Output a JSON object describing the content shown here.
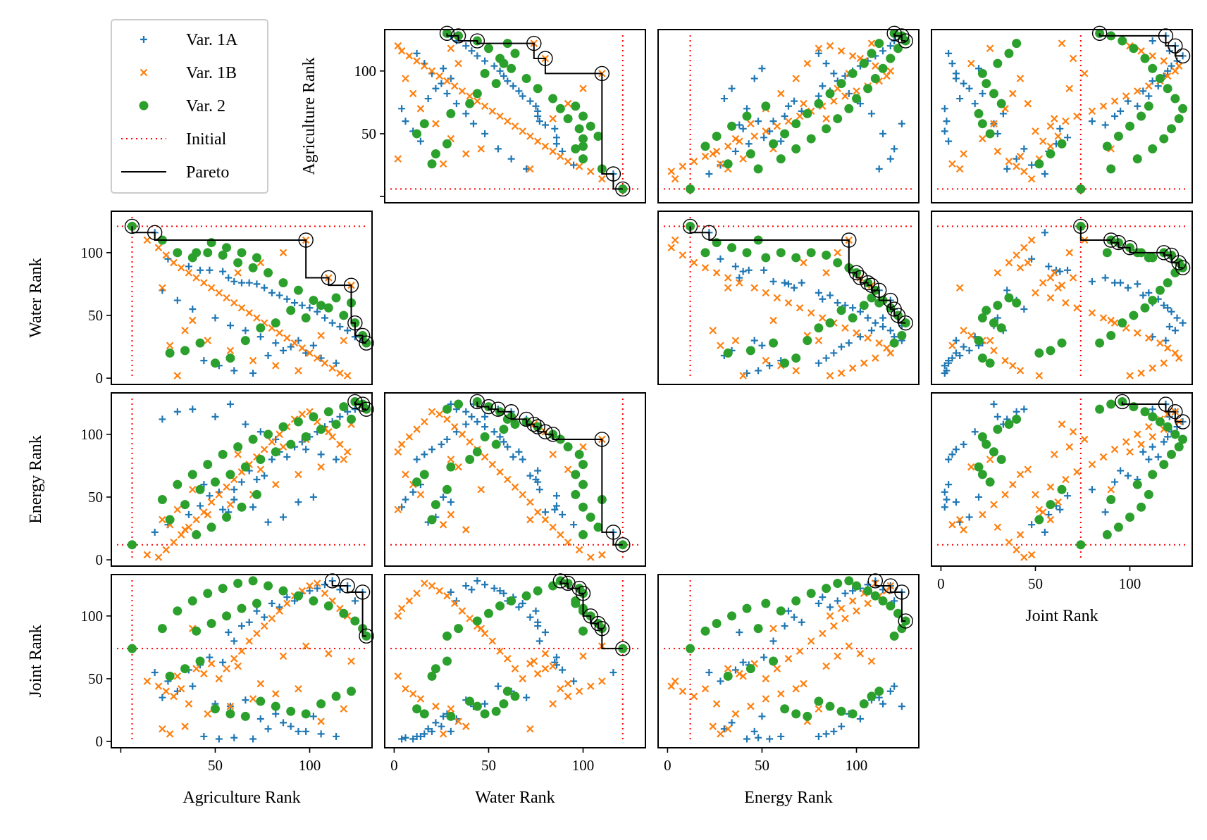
{
  "legend": {
    "placement": "top-left",
    "entries": [
      {
        "label": "Var. 1A",
        "kind": "plus",
        "color": "#1f77b4"
      },
      {
        "label": "Var. 1B",
        "kind": "x",
        "color": "#ff7f0e"
      },
      {
        "label": "Var. 2",
        "kind": "dot",
        "color": "#2ca02c"
      },
      {
        "label": "Initial",
        "kind": "dotted-line",
        "color": "#ff0000"
      },
      {
        "label": "Pareto",
        "kind": "line",
        "color": "#000000"
      }
    ]
  },
  "axis_labels": {
    "agr": "Agriculture Rank",
    "water": "Water Rank",
    "energy": "Energy Rank",
    "joint": "Joint Rank"
  },
  "chart_data": {
    "type": "scatter",
    "layout": "pairwise scatter matrix (4x4), diagonal empty",
    "variables": [
      "Agriculture Rank",
      "Water Rank",
      "Energy Rank",
      "Joint Rank"
    ],
    "range": [
      -5,
      133
    ],
    "ticks": [
      0,
      50,
      100
    ],
    "initial_solution": {
      "Agriculture Rank": 6,
      "Water Rank": 121,
      "Energy Rank": 12,
      "Joint Rank": 74
    },
    "series": [
      {
        "name": "Var. 1A",
        "points": [
          [
            18,
            116,
            22,
            55
          ],
          [
            25,
            95,
            28,
            48
          ],
          [
            36,
            89,
            36,
            57
          ],
          [
            42,
            86,
            43,
            61
          ],
          [
            47,
            86,
            51,
            67
          ],
          [
            54,
            85,
            40,
            63
          ],
          [
            57,
            80,
            38,
            87
          ],
          [
            60,
            77,
            56,
            80
          ],
          [
            64,
            76,
            62,
            92
          ],
          [
            68,
            76,
            71,
            95
          ],
          [
            72,
            75,
            64,
            104
          ],
          [
            76,
            72,
            67,
            99
          ],
          [
            80,
            68,
            80,
            110
          ],
          [
            84,
            66,
            86,
            107
          ],
          [
            88,
            63,
            82,
            115
          ],
          [
            92,
            60,
            90,
            112
          ],
          [
            96,
            58,
            94,
            118
          ],
          [
            100,
            56,
            98,
            120
          ],
          [
            104,
            53,
            102,
            122
          ],
          [
            108,
            48,
            106,
            125
          ],
          [
            112,
            44,
            110,
            128
          ],
          [
            116,
            41,
            114,
            121
          ],
          [
            120,
            38,
            118,
            124
          ],
          [
            124,
            33,
            120,
            112
          ],
          [
            128,
            30,
            124,
            119
          ],
          [
            22,
            70,
            112,
            35
          ],
          [
            30,
            62,
            118,
            40
          ],
          [
            38,
            55,
            120,
            44
          ],
          [
            50,
            48,
            114,
            30
          ],
          [
            58,
            42,
            124,
            28
          ],
          [
            66,
            38,
            108,
            33
          ],
          [
            74,
            33,
            102,
            18
          ],
          [
            82,
            28,
            96,
            22
          ],
          [
            90,
            25,
            92,
            12
          ],
          [
            98,
            20,
            88,
            8
          ],
          [
            106,
            16,
            84,
            6
          ],
          [
            114,
            12,
            80,
            4
          ],
          [
            44,
            14,
            60,
            4
          ],
          [
            52,
            10,
            54,
            2
          ],
          [
            60,
            6,
            48,
            3
          ],
          [
            70,
            4,
            42,
            2
          ],
          [
            78,
            18,
            30,
            10
          ],
          [
            86,
            22,
            34,
            15
          ],
          [
            94,
            30,
            46,
            8
          ],
          [
            102,
            26,
            50,
            20
          ]
        ]
      },
      {
        "name": "Var. 1B",
        "points": [
          [
            14,
            110,
            4,
            48
          ],
          [
            20,
            104,
            2,
            44
          ],
          [
            24,
            98,
            8,
            40
          ],
          [
            28,
            92,
            14,
            36
          ],
          [
            32,
            88,
            20,
            42
          ],
          [
            36,
            84,
            26,
            30
          ],
          [
            40,
            80,
            32,
            58
          ],
          [
            44,
            76,
            38,
            54
          ],
          [
            48,
            72,
            46,
            62
          ],
          [
            52,
            68,
            52,
            50
          ],
          [
            56,
            64,
            58,
            58
          ],
          [
            60,
            60,
            64,
            66
          ],
          [
            64,
            56,
            70,
            72
          ],
          [
            68,
            52,
            76,
            80
          ],
          [
            72,
            48,
            82,
            86
          ],
          [
            76,
            44,
            88,
            92
          ],
          [
            80,
            40,
            94,
            98
          ],
          [
            84,
            36,
            100,
            104
          ],
          [
            88,
            32,
            106,
            110
          ],
          [
            92,
            28,
            112,
            116
          ],
          [
            96,
            24,
            116,
            120
          ],
          [
            100,
            20,
            118,
            124
          ],
          [
            104,
            16,
            110,
            126
          ],
          [
            108,
            12,
            104,
            118
          ],
          [
            112,
            8,
            98,
            112
          ],
          [
            116,
            4,
            92,
            106
          ],
          [
            120,
            2,
            86,
            100
          ],
          [
            22,
            72,
            32,
            10
          ],
          [
            26,
            26,
            28,
            6
          ],
          [
            34,
            38,
            24,
            12
          ],
          [
            46,
            30,
            36,
            22
          ],
          [
            58,
            22,
            44,
            28
          ],
          [
            70,
            14,
            52,
            34
          ],
          [
            82,
            10,
            60,
            38
          ],
          [
            94,
            6,
            68,
            42
          ],
          [
            106,
            34,
            74,
            16
          ],
          [
            118,
            30,
            80,
            26
          ],
          [
            30,
            2,
            40,
            52
          ],
          [
            62,
            84,
            84,
            60
          ],
          [
            74,
            92,
            72,
            46
          ],
          [
            86,
            100,
            90,
            68
          ],
          [
            98,
            110,
            96,
            76
          ],
          [
            110,
            80,
            102,
            70
          ],
          [
            122,
            74,
            108,
            64
          ],
          [
            38,
            46,
            56,
            90
          ]
        ]
      },
      {
        "name": "Var. 2",
        "points": [
          [
            6,
            121,
            12,
            74
          ],
          [
            22,
            110,
            48,
            90
          ],
          [
            30,
            100,
            60,
            104
          ],
          [
            38,
            96,
            68,
            112
          ],
          [
            46,
            100,
            76,
            118
          ],
          [
            54,
            98,
            84,
            122
          ],
          [
            62,
            92,
            90,
            126
          ],
          [
            70,
            88,
            96,
            128
          ],
          [
            78,
            84,
            100,
            124
          ],
          [
            86,
            76,
            106,
            120
          ],
          [
            94,
            70,
            110,
            116
          ],
          [
            102,
            62,
            114,
            112
          ],
          [
            110,
            56,
            118,
            108
          ],
          [
            118,
            50,
            122,
            102
          ],
          [
            124,
            44,
            126,
            96
          ],
          [
            128,
            34,
            124,
            90
          ],
          [
            130,
            28,
            120,
            84
          ],
          [
            26,
            20,
            32,
            52
          ],
          [
            34,
            22,
            44,
            58
          ],
          [
            42,
            28,
            56,
            64
          ],
          [
            50,
            12,
            62,
            26
          ],
          [
            58,
            16,
            68,
            22
          ],
          [
            66,
            30,
            74,
            20
          ],
          [
            74,
            40,
            80,
            32
          ],
          [
            82,
            44,
            86,
            28
          ],
          [
            90,
            54,
            92,
            24
          ],
          [
            98,
            48,
            98,
            22
          ],
          [
            106,
            58,
            104,
            30
          ],
          [
            114,
            64,
            108,
            36
          ],
          [
            122,
            60,
            112,
            40
          ],
          [
            40,
            100,
            20,
            88
          ],
          [
            48,
            108,
            26,
            94
          ],
          [
            56,
            104,
            34,
            100
          ],
          [
            64,
            100,
            42,
            106
          ],
          [
            72,
            96,
            52,
            110
          ]
        ]
      }
    ]
  }
}
